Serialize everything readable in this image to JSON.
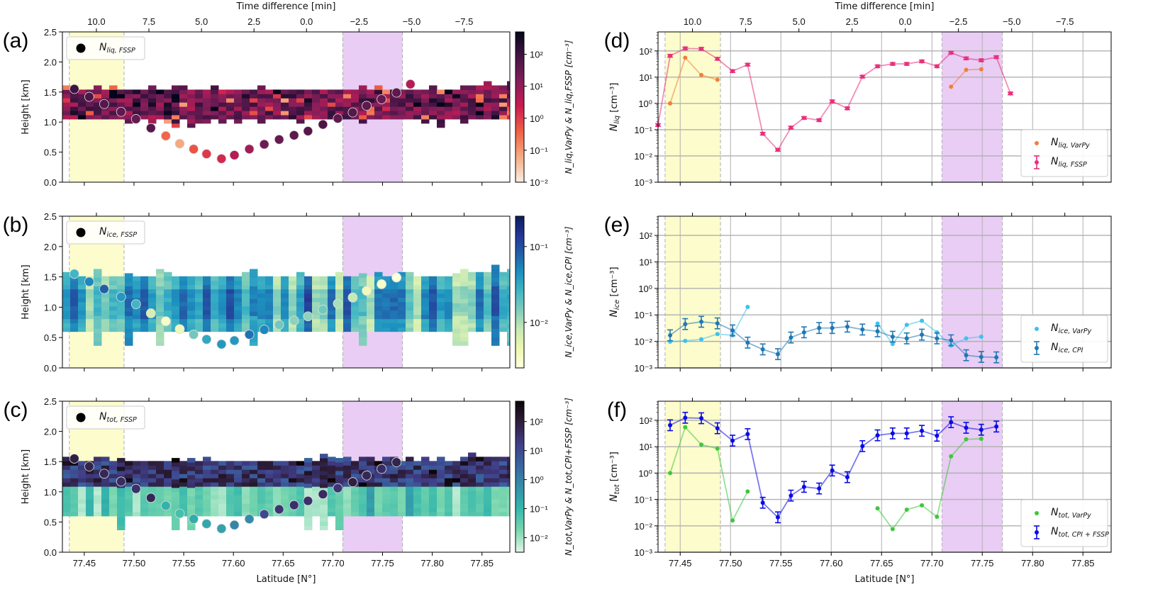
{
  "figure": {
    "top_axis_label": "Time difference [min]",
    "bottom_axis_label": "Latitude [N°]",
    "top_ticks": [
      "10.0",
      "7.5",
      "5.0",
      "2.5",
      "0.0",
      "−2.5",
      "−5.0",
      "−7.5"
    ],
    "top_tick_lat": [
      77.4622,
      77.515,
      77.5679,
      77.6207,
      77.6735,
      77.7263,
      77.7792,
      77.832
    ],
    "lat_ticks": [
      77.45,
      77.5,
      77.55,
      77.6,
      77.65,
      77.7,
      77.75,
      77.8,
      77.85
    ],
    "lat_tick_labels": [
      "77.45",
      "77.50",
      "77.55",
      "77.60",
      "77.65",
      "77.70",
      "77.75",
      "77.80",
      "77.85"
    ],
    "xlim": [
      77.428,
      77.878
    ],
    "yellow_band": [
      77.435,
      77.49
    ],
    "purple_band": [
      77.71,
      77.77
    ],
    "colors": {
      "yellow_band": "#fdfccc",
      "purple_band": "#e9cdf5",
      "band_edge": "#b0b0b0"
    }
  },
  "chart_data": [
    {
      "panel": "(a)",
      "type": "heatmap",
      "ylabel": "Height [km]",
      "ylim": [
        0,
        2.5
      ],
      "yticks": [
        "0.0",
        "0.5",
        "1.0",
        "1.5",
        "2.0",
        "2.5"
      ],
      "colorbar_label": "N_liq,VarPy & N_liq,FSSP [cm⁻³]",
      "colorbar_ticks": [
        "10⁻²",
        "10⁻¹",
        "10⁰",
        "10¹",
        "10²"
      ],
      "colormap": "rocket",
      "legend": "N_liq,FSSP",
      "cloud_layer": {
        "base_km": 1.05,
        "top_km": 1.5
      },
      "fssp_points": {
        "lat": [
          77.44,
          77.455,
          77.47,
          77.487,
          77.502,
          77.517,
          77.532,
          77.546,
          77.56,
          77.573,
          77.588,
          77.601,
          77.616,
          77.631,
          77.646,
          77.661,
          77.675,
          77.69,
          77.705,
          77.72,
          77.734,
          77.749,
          77.764,
          77.778
        ],
        "height_km": [
          1.55,
          1.42,
          1.3,
          1.17,
          1.05,
          0.9,
          0.77,
          0.64,
          0.55,
          0.47,
          0.39,
          0.45,
          0.55,
          0.63,
          0.71,
          0.78,
          0.85,
          0.96,
          1.06,
          1.16,
          1.27,
          1.38,
          1.49,
          1.63
        ],
        "log10_conc": [
          2.0,
          1.8,
          1.7,
          1.6,
          1.5,
          1.7,
          -0.5,
          -1.2,
          -0.3,
          0.0,
          0.2,
          0.6,
          0.8,
          1.4,
          1.5,
          1.6,
          1.7,
          1.8,
          1.6,
          1.7,
          1.6,
          1.5,
          1.6,
          0.6
        ]
      }
    },
    {
      "panel": "(b)",
      "type": "heatmap",
      "ylabel": "Height [km]",
      "ylim": [
        0,
        2.5
      ],
      "yticks": [
        "0.0",
        "0.5",
        "1.0",
        "1.5",
        "2.0",
        "2.5"
      ],
      "colorbar_label": "N_ice,VarPy & N_ice,CPI [cm⁻³]",
      "colorbar_ticks": [
        "10⁻²",
        "10⁻¹"
      ],
      "colormap": "YlGnBu",
      "legend": "N_ice,FSSP",
      "cloud_layer": {
        "base_km": 0.6,
        "top_km": 1.5
      },
      "fssp_points": {
        "lat": [
          77.44,
          77.455,
          77.47,
          77.487,
          77.502,
          77.517,
          77.532,
          77.546,
          77.56,
          77.573,
          77.588,
          77.601,
          77.616,
          77.631,
          77.646,
          77.661,
          77.675,
          77.69,
          77.705,
          77.72,
          77.734,
          77.749,
          77.764
        ],
        "height_km": [
          1.55,
          1.42,
          1.3,
          1.17,
          1.05,
          0.9,
          0.77,
          0.64,
          0.55,
          0.47,
          0.39,
          0.45,
          0.55,
          0.63,
          0.71,
          0.78,
          0.85,
          0.96,
          1.06,
          1.16,
          1.27,
          1.38,
          1.49
        ],
        "log10_conc": [
          -1.6,
          -1.3,
          -1.1,
          -1.4,
          -1.6,
          -2.2,
          -2.5,
          -2.4,
          -1.8,
          -1.5,
          -1.4,
          -1.4,
          -1.2,
          -1.3,
          -1.8,
          -1.9,
          -1.9,
          -1.8,
          -2.0,
          -2.1,
          -2.4,
          -2.5,
          -2.6
        ]
      }
    },
    {
      "panel": "(c)",
      "type": "heatmap",
      "ylabel": "Height [km]",
      "ylim": [
        0,
        2.5
      ],
      "yticks": [
        "0.0",
        "0.5",
        "1.0",
        "1.5",
        "2.0",
        "2.5"
      ],
      "colorbar_label": "N_tot,VarPy & N_tot,CPI+FSSP [cm⁻³]",
      "colorbar_ticks": [
        "10⁻²",
        "10⁻¹",
        "10⁰",
        "10¹",
        "10²"
      ],
      "colormap": "mako_r",
      "legend": "N_tot,FSSP",
      "cloud_layer": {
        "base_km": 0.6,
        "top_km": 1.5,
        "liquid_base_km": 1.05
      },
      "fssp_points": {
        "lat": [
          77.44,
          77.455,
          77.47,
          77.487,
          77.502,
          77.517,
          77.532,
          77.546,
          77.56,
          77.573,
          77.588,
          77.601,
          77.616,
          77.631,
          77.646,
          77.661,
          77.675,
          77.69,
          77.705,
          77.72,
          77.734,
          77.749,
          77.764
        ],
        "height_km": [
          1.55,
          1.42,
          1.3,
          1.17,
          1.05,
          0.9,
          0.77,
          0.64,
          0.55,
          0.47,
          0.39,
          0.45,
          0.55,
          0.63,
          0.71,
          0.78,
          0.85,
          0.96,
          1.06,
          1.16,
          1.27,
          1.38,
          1.49
        ],
        "log10_conc": [
          1.9,
          1.8,
          1.7,
          1.6,
          1.5,
          1.7,
          -0.9,
          -1.2,
          -0.8,
          -0.7,
          -0.6,
          -0.1,
          -0.2,
          1.0,
          1.4,
          1.5,
          1.5,
          1.6,
          1.4,
          1.9,
          1.7,
          1.6,
          1.8
        ]
      }
    },
    {
      "panel": "(d)",
      "type": "line",
      "yscale": "log",
      "ylabel": "N_liq [cm⁻³]",
      "ylim": [
        0.001,
        530
      ],
      "yticks": [
        "10⁻³",
        "10⁻²",
        "10⁻¹",
        "10⁰",
        "10¹",
        "10²"
      ],
      "legend_position": "lower-right",
      "series": [
        {
          "name": "N_liq,VarPy",
          "color": "#f07f3c",
          "x": [
            77.44,
            77.455,
            77.471,
            77.487,
            null,
            77.719,
            77.734,
            77.749
          ],
          "y": [
            1.0,
            55,
            12,
            8,
            null,
            4.3,
            19,
            20
          ]
        },
        {
          "name": "N_liq,FSSP",
          "color": "#e8307c",
          "errorbars": true,
          "x": [
            77.428,
            77.44,
            77.455,
            77.471,
            77.487,
            77.502,
            77.517,
            77.532,
            77.547,
            77.56,
            77.573,
            77.588,
            77.601,
            77.616,
            77.631,
            77.646,
            77.661,
            77.675,
            77.69,
            77.705,
            77.719,
            77.734,
            77.749,
            77.764,
            77.778
          ],
          "y": [
            0.15,
            65,
            125,
            120,
            50,
            17,
            30,
            0.07,
            0.017,
            0.12,
            0.28,
            0.23,
            1.2,
            0.65,
            10.5,
            26,
            32,
            32,
            40,
            26,
            85,
            52,
            44,
            58,
            2.4
          ]
        }
      ]
    },
    {
      "panel": "(e)",
      "type": "line",
      "yscale": "log",
      "ylabel": "N_ice [cm⁻³]",
      "ylim": [
        0.001,
        530
      ],
      "yticks": [
        "10⁻³",
        "10⁻²",
        "10⁻¹",
        "10⁰",
        "10¹",
        "10²"
      ],
      "legend_position": "lower-right",
      "series": [
        {
          "name": "N_ice,VarPy",
          "color": "#3ec1ee",
          "x": [
            77.44,
            77.455,
            77.471,
            77.487,
            77.502,
            77.517,
            null,
            77.646,
            77.661,
            77.675,
            77.69,
            77.705,
            77.719,
            77.734,
            77.749
          ],
          "y": [
            0.0098,
            0.0105,
            0.012,
            0.019,
            0.017,
            0.2,
            null,
            0.047,
            0.008,
            0.042,
            0.06,
            0.022,
            0.007,
            0.013,
            0.015
          ]
        },
        {
          "name": "N_ice,CPI",
          "color": "#1f78b4",
          "errorbars": true,
          "x": [
            77.44,
            77.455,
            77.471,
            77.487,
            77.502,
            77.517,
            77.532,
            77.547,
            77.56,
            77.573,
            77.588,
            77.601,
            77.616,
            77.631,
            77.646,
            77.661,
            77.675,
            77.69,
            77.705,
            77.719,
            77.734,
            77.749,
            77.764
          ],
          "y": [
            0.017,
            0.045,
            0.055,
            0.048,
            0.026,
            0.009,
            0.005,
            0.0033,
            0.014,
            0.022,
            0.032,
            0.032,
            0.036,
            0.028,
            0.024,
            0.015,
            0.013,
            0.018,
            0.013,
            0.011,
            0.003,
            0.0026,
            0.0025
          ]
        }
      ]
    },
    {
      "panel": "(f)",
      "type": "line",
      "yscale": "log",
      "ylabel": "N_tot [cm⁻³]",
      "ylim": [
        0.001,
        530
      ],
      "yticks": [
        "10⁻³",
        "10⁻²",
        "10⁻¹",
        "10⁰",
        "10¹",
        "10²"
      ],
      "legend_position": "lower-right",
      "series": [
        {
          "name": "N_tot,VarPy",
          "color": "#3cc83c",
          "x": [
            77.44,
            77.455,
            77.471,
            77.487,
            77.502,
            77.517,
            null,
            77.646,
            77.661,
            77.675,
            77.69,
            77.705,
            77.719,
            77.734,
            77.749
          ],
          "y": [
            1.0,
            55,
            12,
            8.5,
            0.016,
            0.2,
            null,
            0.046,
            0.0075,
            0.041,
            0.06,
            0.022,
            4.3,
            19,
            20
          ]
        },
        {
          "name": "N_tot,CPI+FSSP",
          "color": "#0a0ae8",
          "errorbars": true,
          "x": [
            77.44,
            77.455,
            77.471,
            77.487,
            77.502,
            77.517,
            77.532,
            77.547,
            77.56,
            77.573,
            77.588,
            77.601,
            77.616,
            77.631,
            77.646,
            77.661,
            77.675,
            77.69,
            77.705,
            77.719,
            77.734,
            77.749,
            77.764
          ],
          "y": [
            65,
            125,
            120,
            50,
            17,
            30,
            0.075,
            0.021,
            0.14,
            0.3,
            0.26,
            1.25,
            0.7,
            10.5,
            27,
            32,
            32,
            40,
            26,
            85,
            52,
            44,
            58
          ]
        }
      ]
    }
  ],
  "legend_labels": {
    "a": {
      "main": "N",
      "sub": "liq, FSSP"
    },
    "b": {
      "main": "N",
      "sub": "ice, FSSP"
    },
    "c": {
      "main": "N",
      "sub": "tot, FSSP"
    },
    "d1": {
      "main": "N",
      "sub": "liq, VarPy"
    },
    "d2": {
      "main": "N",
      "sub": "liq, FSSP"
    },
    "e1": {
      "main": "N",
      "sub": "ice, VarPy"
    },
    "e2": {
      "main": "N",
      "sub": "ice, CPI"
    },
    "f1": {
      "main": "N",
      "sub": "tot, VarPy"
    },
    "f2": {
      "main": "N",
      "sub": "tot, CPI + FSSP"
    }
  },
  "panel_labels": [
    "(a)",
    "(b)",
    "(c)",
    "(d)",
    "(e)",
    "(f)"
  ]
}
